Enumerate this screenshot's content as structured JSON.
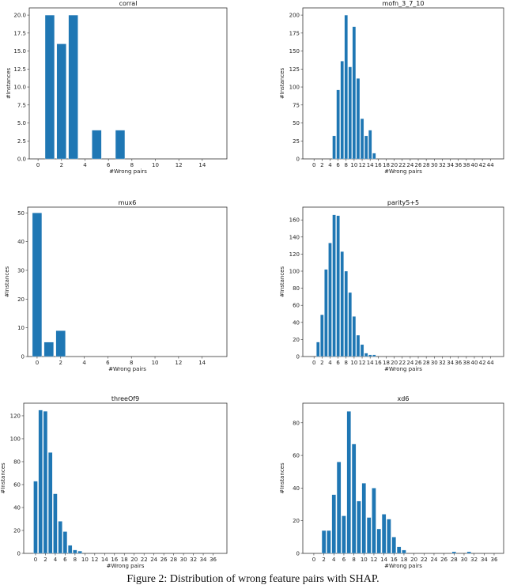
{
  "caption": "Figure 2: Distribution of wrong feature pairs with SHAP.",
  "chart_data": [
    {
      "type": "bar",
      "title": "corral",
      "xlabel": "#Wrong pairs",
      "ylabel": "#Instances",
      "x": [
        1,
        2,
        3,
        5,
        7
      ],
      "values": [
        20,
        16,
        20,
        4,
        4
      ],
      "xticks": [
        0,
        2,
        4,
        6,
        8,
        10,
        12,
        14
      ],
      "yticks": [
        0,
        2.5,
        5,
        7.5,
        10,
        12.5,
        15,
        17.5,
        20
      ],
      "ytick_labels": [
        "0.0",
        "2.5",
        "5.0",
        "7.5",
        "10.0",
        "12.5",
        "15.0",
        "17.5",
        "20.0"
      ],
      "xlim": [
        -0.75,
        16.1
      ],
      "ylim": [
        0,
        21
      ],
      "color": "#1f77b4"
    },
    {
      "type": "bar",
      "title": "mofn_3_7_10",
      "xlabel": "#Wrong pairs",
      "ylabel": "#Instances",
      "x": [
        5,
        6,
        7,
        8,
        9,
        10,
        11,
        12,
        13,
        14,
        15
      ],
      "values": [
        32,
        96,
        136,
        200,
        128,
        184,
        112,
        56,
        32,
        40,
        8
      ],
      "xticks": [
        0,
        2,
        4,
        6,
        8,
        10,
        12,
        14,
        16,
        18,
        20,
        22,
        24,
        26,
        28,
        30,
        32,
        34,
        36,
        38,
        40,
        42,
        44
      ],
      "yticks": [
        0,
        25,
        50,
        75,
        100,
        125,
        150,
        175,
        200
      ],
      "xlim": [
        -2.8,
        47.3
      ],
      "ylim": [
        0,
        210
      ],
      "color": "#1f77b4"
    },
    {
      "type": "bar",
      "title": "mux6",
      "xlabel": "#Wrong pairs",
      "ylabel": "#Instances",
      "x": [
        0,
        1,
        2
      ],
      "values": [
        50,
        5,
        9
      ],
      "xticks": [
        0,
        2,
        4,
        6,
        8,
        10,
        12,
        14
      ],
      "yticks": [
        0,
        10,
        20,
        30,
        40,
        50
      ],
      "xlim": [
        -0.8,
        16.1
      ],
      "ylim": [
        0,
        52
      ],
      "color": "#1f77b4"
    },
    {
      "type": "bar",
      "title": "parity5+5",
      "xlabel": "#Wrong pairs",
      "ylabel": "#Instances",
      "x": [
        1,
        2,
        3,
        4,
        5,
        6,
        7,
        8,
        9,
        10,
        11,
        12,
        13,
        14,
        15
      ],
      "values": [
        17,
        49,
        102,
        133,
        166,
        165,
        123,
        100,
        75,
        47,
        25,
        14,
        4,
        2,
        2
      ],
      "xticks": [
        0,
        2,
        4,
        6,
        8,
        10,
        12,
        14,
        16,
        18,
        20,
        22,
        24,
        26,
        28,
        30,
        32,
        34,
        36,
        38,
        40,
        42,
        44
      ],
      "yticks": [
        0,
        20,
        40,
        60,
        80,
        100,
        120,
        140,
        160
      ],
      "xlim": [
        -2.8,
        47.3
      ],
      "ylim": [
        0,
        175
      ],
      "color": "#1f77b4"
    },
    {
      "type": "bar",
      "title": "threeOf9",
      "xlabel": "#Wrong pairs",
      "ylabel": "#Instances",
      "x": [
        0,
        1,
        2,
        3,
        4,
        5,
        6,
        7,
        8,
        9
      ],
      "values": [
        63,
        125,
        124,
        88,
        52,
        28,
        19,
        7,
        3,
        2
      ],
      "xticks": [
        0,
        2,
        4,
        6,
        8,
        10,
        12,
        14,
        16,
        18,
        20,
        22,
        24,
        26,
        28,
        30,
        32,
        34,
        36
      ],
      "yticks": [
        0,
        20,
        40,
        60,
        80,
        100,
        120
      ],
      "xlim": [
        -2.4,
        38.8
      ],
      "ylim": [
        0,
        131
      ],
      "color": "#1f77b4"
    },
    {
      "type": "bar",
      "title": "xd6",
      "xlabel": "#Wrong pairs",
      "ylabel": "#Instances",
      "x": [
        2,
        3,
        4,
        5,
        6,
        7,
        8,
        9,
        10,
        11,
        12,
        13,
        14,
        15,
        16,
        17,
        18,
        28,
        31
      ],
      "values": [
        14,
        14,
        36,
        56,
        23,
        87,
        67,
        32,
        43,
        22,
        40,
        15,
        24,
        21,
        10,
        4,
        2,
        1,
        1
      ],
      "xticks": [
        0,
        2,
        4,
        6,
        8,
        10,
        12,
        14,
        16,
        18,
        20,
        22,
        24,
        26,
        28,
        30,
        32,
        34,
        36
      ],
      "yticks": [
        0,
        20,
        40,
        60,
        80
      ],
      "xlim": [
        -2.2,
        37.9
      ],
      "ylim": [
        0,
        92
      ],
      "color": "#1f77b4"
    }
  ]
}
